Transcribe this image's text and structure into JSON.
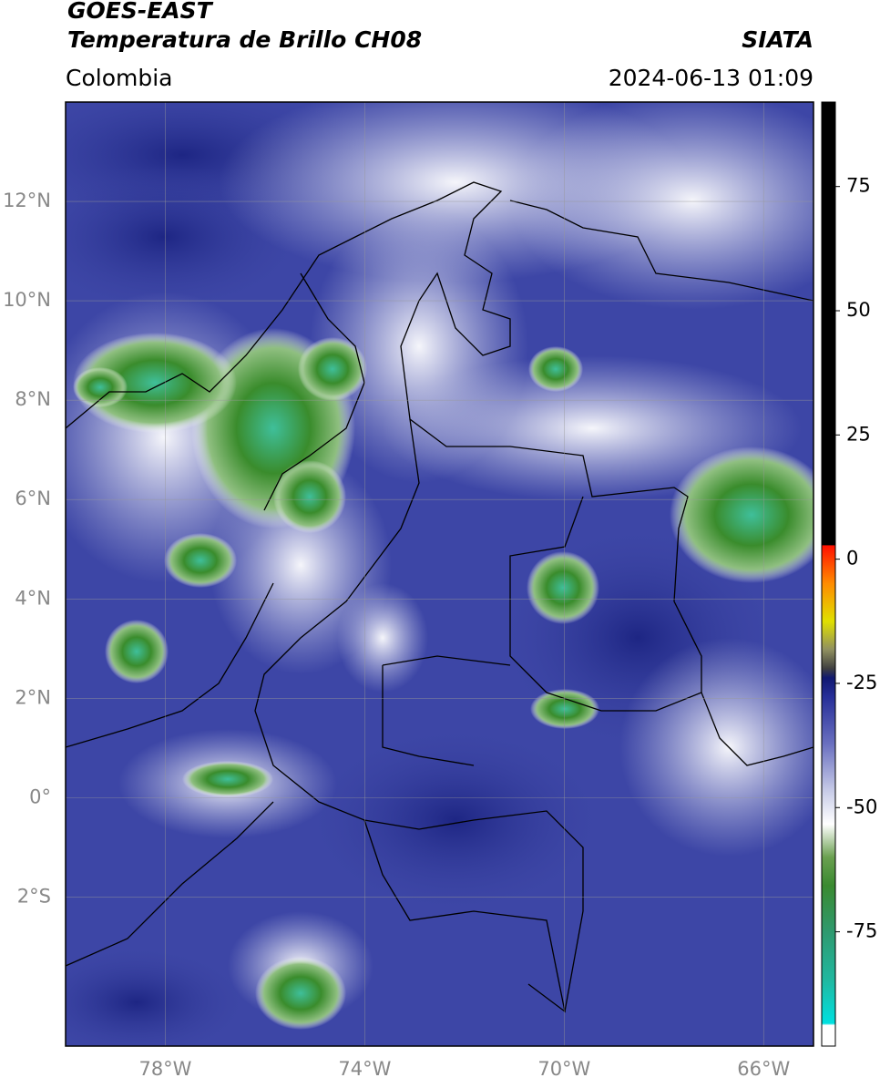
{
  "header": {
    "title": "GOES-EAST",
    "subtitle": "Temperatura de Brillo CH08",
    "source": "SIATA",
    "region": "Colombia",
    "datetime": "2024-06-13 01:09"
  },
  "map": {
    "xlim": [
      -80,
      -65
    ],
    "ylim": [
      -5,
      14
    ],
    "xticks": [
      {
        "value": -78,
        "label": "78°W"
      },
      {
        "value": -74,
        "label": "74°W"
      },
      {
        "value": -70,
        "label": "70°W"
      },
      {
        "value": -66,
        "label": "66°W"
      }
    ],
    "yticks": [
      {
        "value": 12,
        "label": "12°N"
      },
      {
        "value": 10,
        "label": "10°N"
      },
      {
        "value": 8,
        "label": "8°N"
      },
      {
        "value": 6,
        "label": "6°N"
      },
      {
        "value": 4,
        "label": "4°N"
      },
      {
        "value": 2,
        "label": "2°N"
      },
      {
        "value": 0,
        "label": "0°"
      },
      {
        "value": -2,
        "label": "2°S"
      }
    ],
    "grid": true
  },
  "colorbar": {
    "lim": [
      -98,
      92
    ],
    "ticks": [
      75,
      50,
      25,
      0,
      -25,
      -50,
      -75
    ]
  }
}
